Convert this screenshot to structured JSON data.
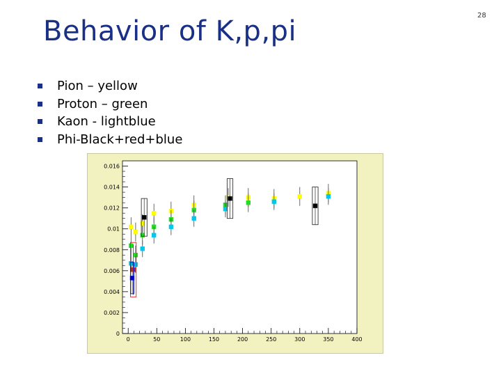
{
  "slide": {
    "title": "Behavior of K,p,pi",
    "number": "28",
    "bullets": [
      "Pion – yellow",
      "Proton – green",
      "Kaon - lightblue",
      "Phi-Black+red+blue"
    ],
    "colors": {
      "title": "#1a2f86",
      "bullet": "#1a2f86",
      "plot_bg": "#f2f2c0",
      "canvas_bg": "#ffffff"
    }
  },
  "chart_data": {
    "type": "scatter",
    "title": "",
    "xlabel": "",
    "ylabel": "",
    "xlim": [
      -10,
      400
    ],
    "ylim": [
      0,
      0.0165
    ],
    "x_ticks": [
      "0",
      "50",
      "100",
      "150",
      "200",
      "250",
      "300",
      "350",
      "400"
    ],
    "y_ticks": [
      "0",
      "0.002",
      "0.004",
      "0.006",
      "0.008",
      "0.01",
      "0.012",
      "0.014",
      "0.016"
    ],
    "grid": false,
    "series": [
      {
        "color": "#ffff00",
        "points": [
          {
            "x": 5,
            "y": 0.0102,
            "err": 0.0009
          },
          {
            "x": 13,
            "y": 0.0097,
            "err": 0.0009
          },
          {
            "x": 25,
            "y": 0.0105,
            "err": 0.0009
          },
          {
            "x": 45,
            "y": 0.0115,
            "err": 0.0009
          },
          {
            "x": 75,
            "y": 0.0117,
            "err": 0.0009
          },
          {
            "x": 115,
            "y": 0.0123,
            "err": 0.0009
          },
          {
            "x": 175,
            "y": 0.013,
            "err": 0.0009
          },
          {
            "x": 210,
            "y": 0.013,
            "err": 0.0009
          },
          {
            "x": 255,
            "y": 0.0129,
            "err": 0.0009
          },
          {
            "x": 300,
            "y": 0.0131,
            "err": 0.0009
          },
          {
            "x": 350,
            "y": 0.0134,
            "err": 0.0009
          }
        ]
      },
      {
        "color": "#22dd22",
        "points": [
          {
            "x": 5,
            "y": 0.0084,
            "err": 0.0009
          },
          {
            "x": 13,
            "y": 0.0075,
            "err": 0.0009
          },
          {
            "x": 25,
            "y": 0.0094,
            "err": 0.0009
          },
          {
            "x": 45,
            "y": 0.0102,
            "err": 0.0009
          },
          {
            "x": 75,
            "y": 0.0109,
            "err": 0.0009
          },
          {
            "x": 115,
            "y": 0.0118,
            "err": 0.0009
          },
          {
            "x": 170,
            "y": 0.0123,
            "err": 0.0009
          },
          {
            "x": 210,
            "y": 0.0125,
            "err": 0.0009
          }
        ]
      },
      {
        "color": "#00c8ec",
        "points": [
          {
            "x": 5,
            "y": 0.0067,
            "err": 0.0008
          },
          {
            "x": 13,
            "y": 0.0066,
            "err": 0.0008
          },
          {
            "x": 25,
            "y": 0.0081,
            "err": 0.0008
          },
          {
            "x": 45,
            "y": 0.0094,
            "err": 0.0008
          },
          {
            "x": 75,
            "y": 0.0102,
            "err": 0.0008
          },
          {
            "x": 115,
            "y": 0.011,
            "err": 0.0008
          },
          {
            "x": 170,
            "y": 0.0119,
            "err": 0.0008
          },
          {
            "x": 255,
            "y": 0.0126,
            "err": 0.0008
          },
          {
            "x": 350,
            "y": 0.0131,
            "err": 0.0008
          }
        ]
      },
      {
        "color": "#000000",
        "points": [
          {
            "x": 28,
            "y": 0.0111,
            "err": 0.0018,
            "box": [
              10,
              0.0018
            ]
          },
          {
            "x": 178,
            "y": 0.0129,
            "err": 0.0019,
            "box": [
              10,
              0.0019
            ]
          },
          {
            "x": 327,
            "y": 0.0122,
            "err": 0.0018,
            "box": [
              10,
              0.0018
            ]
          }
        ]
      },
      {
        "color": "#dd2222",
        "points": [
          {
            "x": 9,
            "y": 0.0061,
            "err": 0.0024,
            "box": [
              10,
              0.0026
            ]
          }
        ]
      },
      {
        "color": "#0000cc",
        "points": [
          {
            "x": 7,
            "y": 0.0053,
            "err": 0.0015,
            "box": [
              6,
              0.0015
            ]
          }
        ]
      }
    ]
  }
}
